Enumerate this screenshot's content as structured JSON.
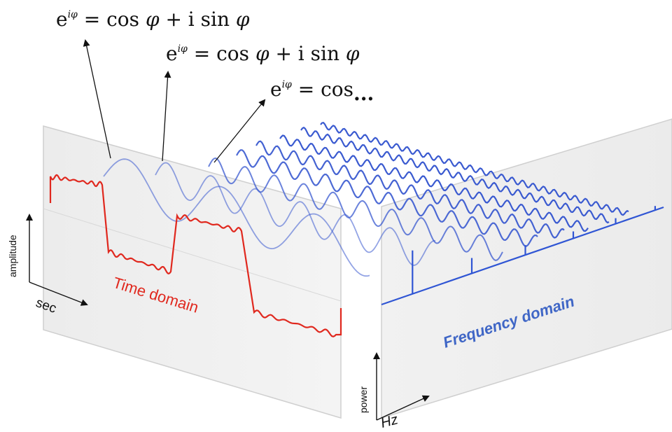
{
  "equations": [
    {
      "base": "e",
      "exponent": "iφ",
      "rest": " = cos ",
      "phi1": "φ",
      "plus": " + i sin ",
      "phi2": "φ"
    },
    {
      "base": "e",
      "exponent": "iφ",
      "rest": " = cos ",
      "phi1": "φ",
      "plus": " + i sin ",
      "phi2": "φ"
    },
    {
      "base": "e",
      "exponent": "iφ",
      "rest": " = cos",
      "ellipsis": "..."
    }
  ],
  "time_panel": {
    "label": "Time domain",
    "y_axis_label": "amplitude",
    "x_axis_label": "sec"
  },
  "freq_panel": {
    "label": "Frequency domain",
    "y_axis_label": "power",
    "x_axis_label": "Hz"
  },
  "colors": {
    "square_wave": "#e0281e",
    "sine_waves": "#3a5ad0",
    "spectrum": "#2f55d4",
    "panel_fill": "#f0f0f0",
    "panel_stroke": "#cfcfcf"
  }
}
